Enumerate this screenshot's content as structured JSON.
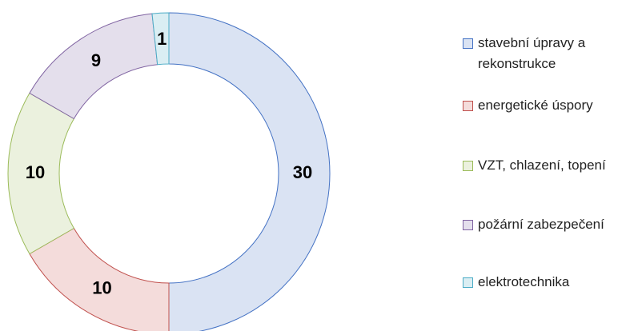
{
  "chart_data": {
    "type": "donut",
    "categories": [
      "stavební úpravy a rekonstrukce",
      "energetické úspory",
      "VZT, chlazení, topení",
      "požární zabezpečení",
      "elektrotechnika"
    ],
    "values": [
      30,
      10,
      10,
      9,
      1
    ],
    "colors": [
      "#dae3f3",
      "#f4dcdb",
      "#ebf1de",
      "#e4dfec",
      "#daeef3"
    ],
    "stroke_colors": [
      "#4472c4",
      "#c0504d",
      "#9bbb59",
      "#8064a2",
      "#4bacc6"
    ],
    "legend": "right"
  }
}
